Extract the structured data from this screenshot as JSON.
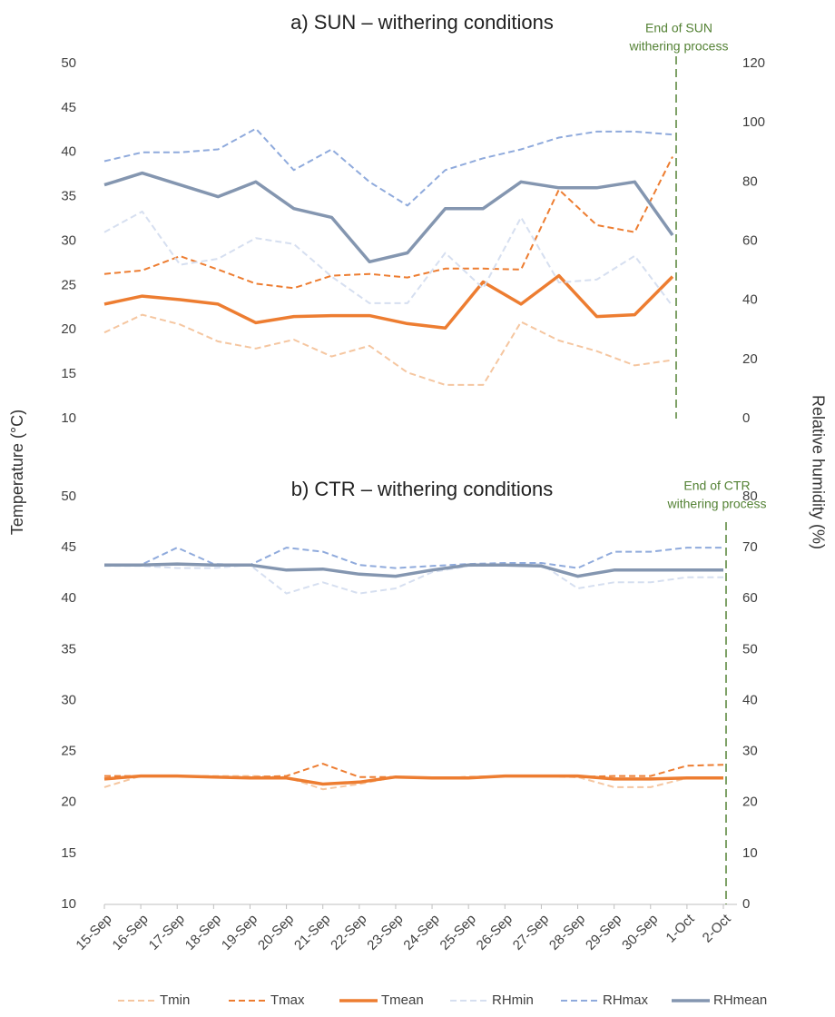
{
  "chart_data": [
    {
      "type": "line",
      "title": "a) SUN – withering conditions",
      "ylabel": "Temperature (°C)",
      "y2label": "Relative humidity (%)",
      "annotation": [
        "End of SUN",
        "withering process"
      ],
      "annotation_color": "#548235",
      "ylim": [
        10,
        50
      ],
      "yticks": [
        10,
        15,
        20,
        25,
        30,
        35,
        40,
        45,
        50
      ],
      "y2lim": [
        0,
        120
      ],
      "y2ticks": [
        0,
        20,
        40,
        60,
        80,
        100,
        120
      ],
      "series": [
        {
          "color": "#f5c6a0",
          "dash": true,
          "width": 2,
          "values": [
            19.7,
            21.7,
            20.6,
            18.7,
            17.9,
            18.9,
            17.0,
            18.2,
            15.2,
            13.8,
            13.8,
            20.9,
            18.8,
            17.6,
            16.0,
            16.6
          ]
        },
        {
          "color": "#ed7d31",
          "dash": true,
          "width": 2,
          "values": [
            26.3,
            26.7,
            28.3,
            26.8,
            25.2,
            24.7,
            26.1,
            26.3,
            25.9,
            26.9,
            26.9,
            26.8,
            35.8,
            31.8,
            31.0,
            39.5
          ]
        },
        {
          "color": "#ed7d31",
          "dash": false,
          "width": 3.5,
          "values": [
            22.9,
            23.8,
            23.4,
            22.9,
            20.8,
            21.5,
            21.6,
            21.6,
            20.7,
            20.2,
            25.4,
            22.9,
            26.1,
            21.5,
            21.7,
            26.0
          ]
        },
        {
          "color": "#d6dff0",
          "dash": true,
          "width": 2,
          "axis": "y2",
          "values": [
            63,
            70,
            52,
            54,
            61,
            59,
            48,
            39,
            39,
            56,
            44,
            68,
            46,
            47,
            55,
            38
          ]
        },
        {
          "color": "#8faadc",
          "dash": true,
          "width": 2,
          "axis": "y2",
          "values": [
            87,
            90,
            90,
            91,
            98,
            84,
            91,
            80,
            72,
            84,
            88,
            91,
            95,
            97,
            97,
            96
          ]
        },
        {
          "color": "#8496b0",
          "dash": false,
          "width": 3.5,
          "axis": "y2",
          "values": [
            79,
            83,
            79,
            75,
            80,
            71,
            68,
            53,
            56,
            71,
            71,
            80,
            78,
            78,
            80,
            62
          ]
        }
      ]
    },
    {
      "type": "line",
      "title": "b) CTR – withering conditions",
      "annotation": [
        "End of CTR",
        "withering process"
      ],
      "annotation_color": "#548235",
      "categories": [
        "15-Sep",
        "16-Sep",
        "17-Sep",
        "18-Sep",
        "19-Sep",
        "20-Sep",
        "21-Sep",
        "22-Sep",
        "23-Sep",
        "24-Sep",
        "25-Sep",
        "26-Sep",
        "27-Sep",
        "28-Sep",
        "29-Sep",
        "30-Sep",
        "1-Oct",
        "2-Oct"
      ],
      "ylim": [
        10,
        50
      ],
      "yticks": [
        10,
        15,
        20,
        25,
        30,
        35,
        40,
        45,
        50
      ],
      "y2lim": [
        0,
        80
      ],
      "y2ticks": [
        0,
        10,
        20,
        30,
        40,
        50,
        60,
        70,
        80
      ],
      "series": [
        {
          "name": "Tmin",
          "color": "#f5c6a0",
          "dash": true,
          "width": 2,
          "values": [
            21.5,
            22.6,
            22.6,
            22.6,
            22.6,
            22.5,
            21.3,
            21.8,
            22.5,
            22.4,
            22.4,
            22.6,
            22.6,
            22.5,
            21.5,
            21.5,
            22.4,
            22.4
          ]
        },
        {
          "name": "Tmax",
          "color": "#ed7d31",
          "dash": true,
          "width": 2,
          "values": [
            22.6,
            22.6,
            22.6,
            22.5,
            22.5,
            22.6,
            23.8,
            22.5,
            22.5,
            22.4,
            22.5,
            22.6,
            22.6,
            22.5,
            22.6,
            22.6,
            23.6,
            23.7
          ]
        },
        {
          "name": "Tmean",
          "color": "#ed7d31",
          "dash": false,
          "width": 3.5,
          "values": [
            22.3,
            22.6,
            22.6,
            22.5,
            22.4,
            22.4,
            21.8,
            22.0,
            22.5,
            22.4,
            22.4,
            22.6,
            22.6,
            22.6,
            22.3,
            22.3,
            22.4,
            22.4
          ]
        },
        {
          "name": "RHmin",
          "color": "#d6dff0",
          "dash": true,
          "width": 2,
          "axis": "y2",
          "values": [
            66.4,
            66.4,
            66,
            66,
            66.6,
            61,
            63.2,
            61,
            62,
            65.2,
            66.4,
            66.6,
            66.8,
            62,
            63.2,
            63.2,
            64.2,
            64.2
          ]
        },
        {
          "name": "RHmax",
          "color": "#8faadc",
          "dash": true,
          "width": 2,
          "axis": "y2",
          "values": [
            66.6,
            66.6,
            70,
            66.8,
            66.6,
            70,
            69.2,
            66.6,
            66,
            66.4,
            66.8,
            67,
            67,
            66,
            69.2,
            69.2,
            70,
            70
          ]
        },
        {
          "name": "RHmean",
          "color": "#8496b0",
          "dash": false,
          "width": 3.5,
          "axis": "y2",
          "values": [
            66.6,
            66.6,
            66.8,
            66.6,
            66.6,
            65.6,
            65.8,
            64.8,
            64.4,
            65.6,
            66.6,
            66.6,
            66.4,
            64.4,
            65.6,
            65.6,
            65.6,
            65.6
          ]
        }
      ]
    }
  ]
}
